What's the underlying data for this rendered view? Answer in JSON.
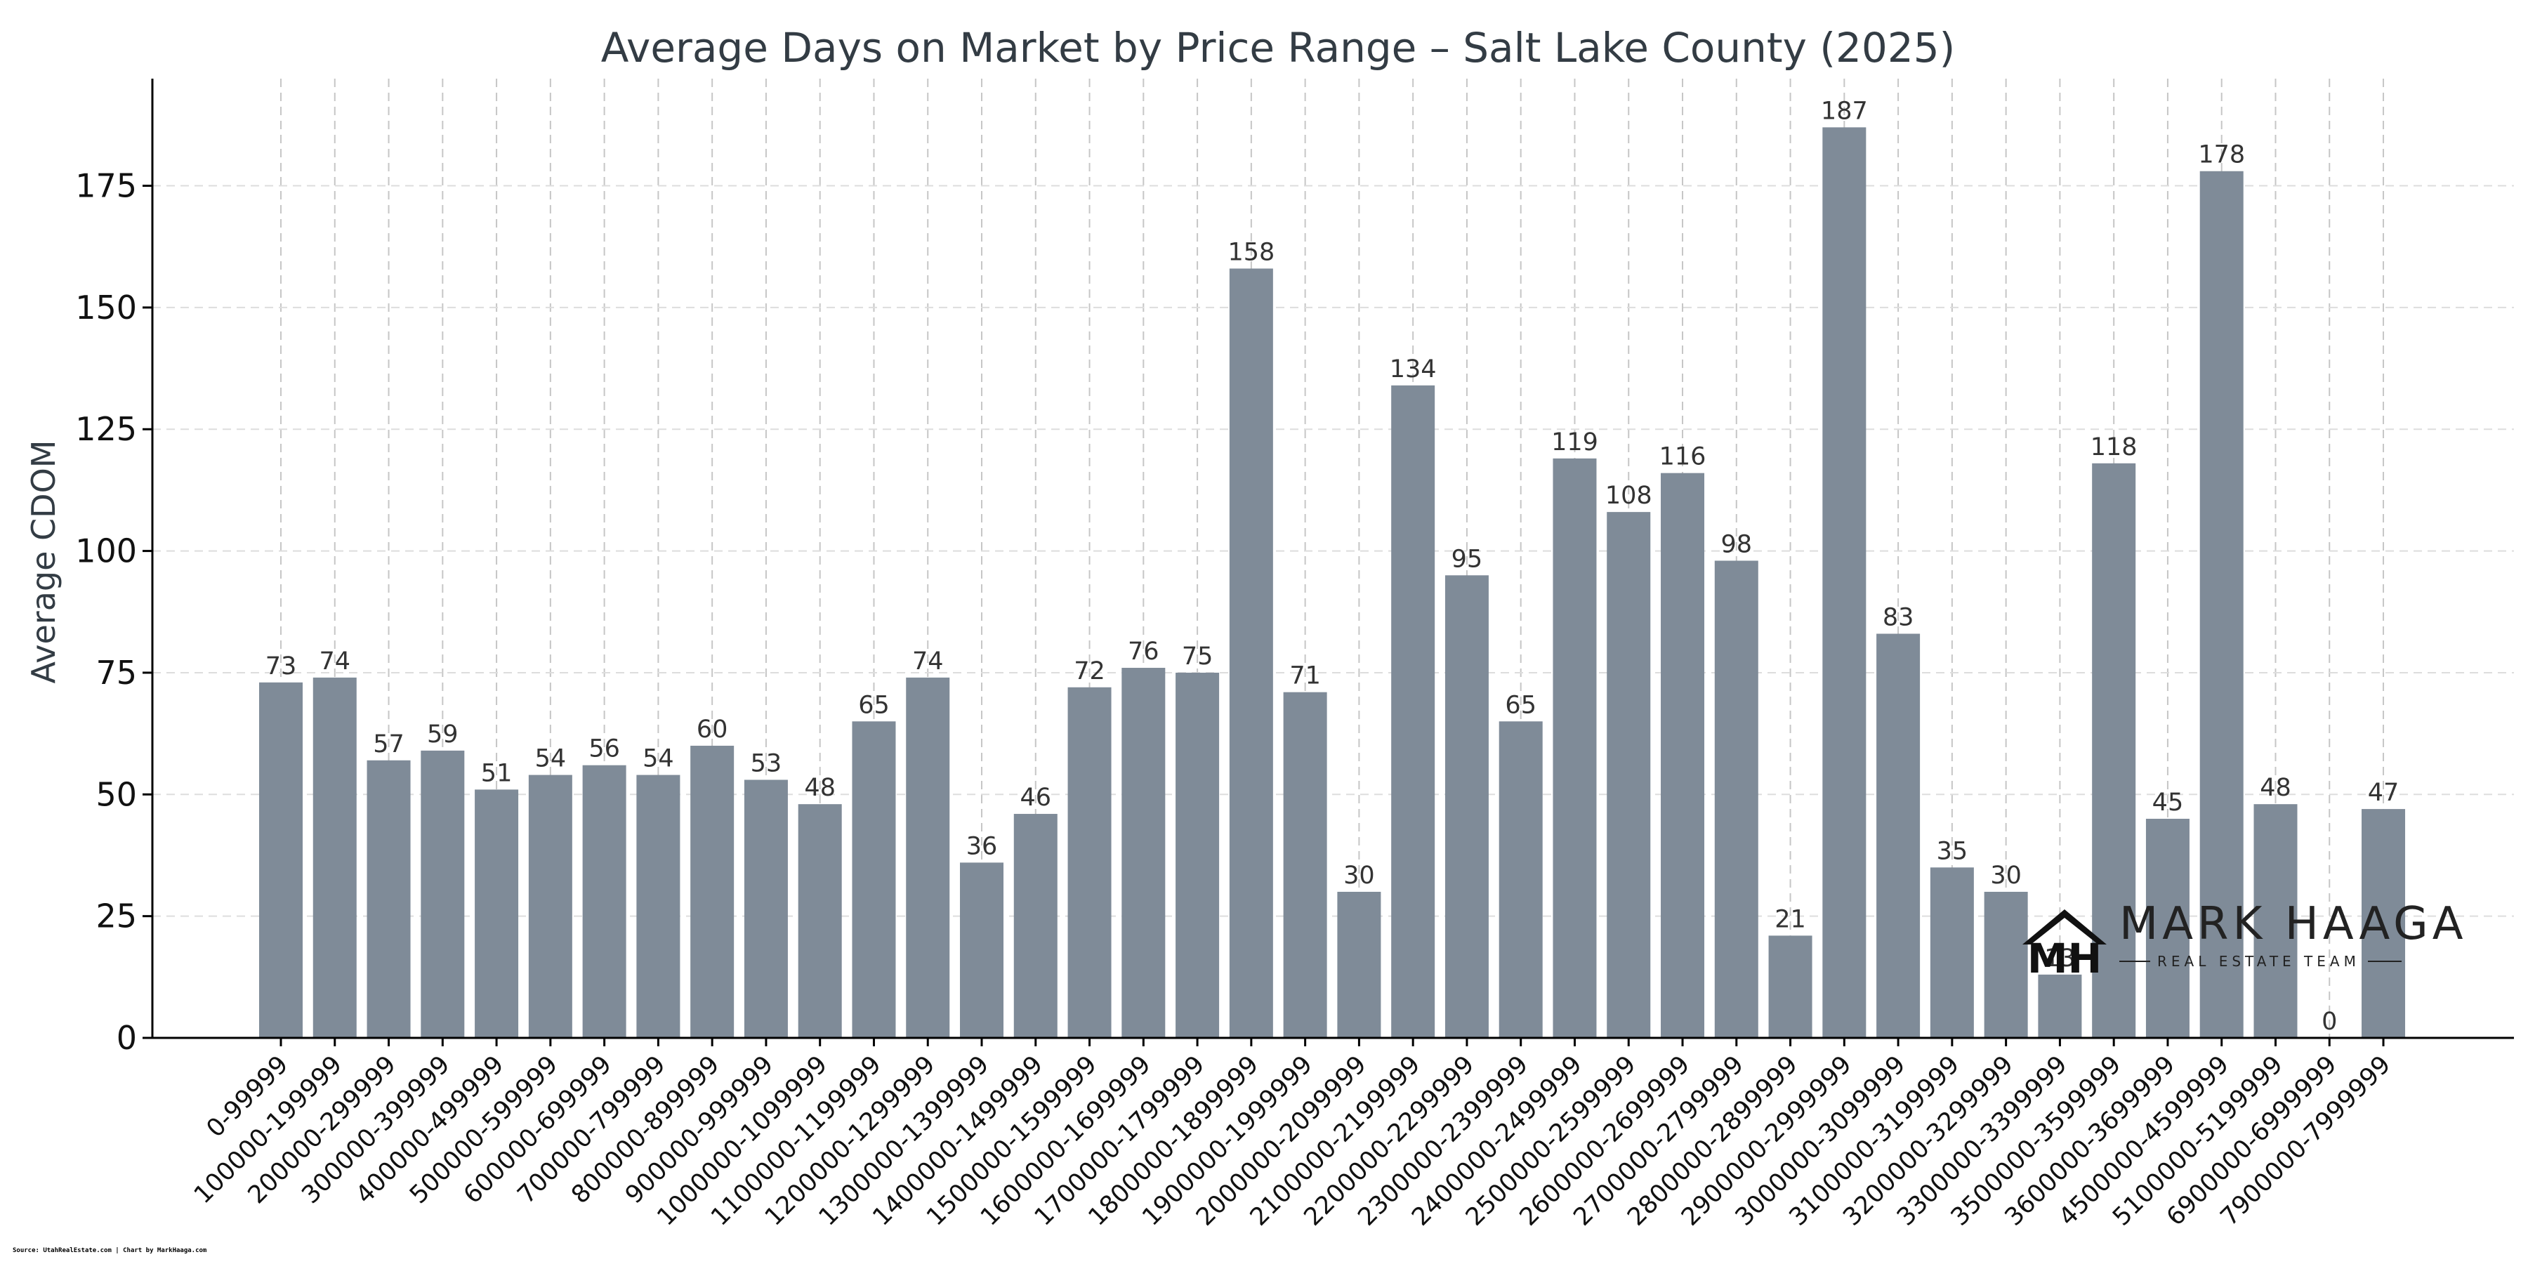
{
  "chart_data": {
    "type": "bar",
    "title": "Average Days on Market by Price Range – Salt Lake County (2025)",
    "xlabel": "",
    "ylabel": "Average CDOM",
    "ylim": [
      0,
      197
    ],
    "yticks": [
      0,
      25,
      50,
      75,
      100,
      125,
      150,
      175
    ],
    "grid": true,
    "categories": [
      "0-99999",
      "100000-199999",
      "200000-299999",
      "300000-399999",
      "400000-499999",
      "500000-599999",
      "600000-699999",
      "700000-799999",
      "800000-899999",
      "900000-999999",
      "1000000-1099999",
      "1100000-1199999",
      "1200000-1299999",
      "1300000-1399999",
      "1400000-1499999",
      "1500000-1599999",
      "1600000-1699999",
      "1700000-1799999",
      "1800000-1899999",
      "1900000-1999999",
      "2000000-2099999",
      "2100000-2199999",
      "2200000-2299999",
      "2300000-2399999",
      "2400000-2499999",
      "2500000-2599999",
      "2600000-2699999",
      "2700000-2799999",
      "2800000-2899999",
      "2900000-2999999",
      "3000000-3099999",
      "3100000-3199999",
      "3200000-3299999",
      "3300000-3399999",
      "3500000-3599999",
      "3600000-3699999",
      "4500000-4599999",
      "5100000-5199999",
      "6900000-6999999",
      "7900000-7999999"
    ],
    "values": [
      73,
      74,
      57,
      59,
      51,
      54,
      56,
      54,
      60,
      53,
      48,
      65,
      74,
      36,
      46,
      72,
      76,
      75,
      158,
      71,
      30,
      134,
      95,
      65,
      119,
      108,
      116,
      98,
      21,
      187,
      83,
      35,
      30,
      13,
      118,
      45,
      178,
      48,
      0,
      47
    ],
    "labels": [
      "73",
      "74",
      "57",
      "59",
      "51",
      "54",
      "56",
      "54",
      "60",
      "53",
      "48",
      "65",
      "74",
      "36",
      "46",
      "72",
      "76",
      "75",
      "158",
      "71",
      "30",
      "134",
      "95",
      "65",
      "119",
      "108",
      "116",
      "98",
      "21",
      "187",
      "83",
      "35",
      "30",
      "13",
      "118",
      "45",
      "178",
      "48",
      "0",
      "47"
    ],
    "bar_color": "#7f8b98"
  },
  "logo": {
    "name": "MARK HAAGA",
    "tagline": "REAL ESTATE TEAM",
    "monogram": "MH"
  },
  "source": "Source: UtahRealEstate.com | Chart by MarkHaaga.com"
}
